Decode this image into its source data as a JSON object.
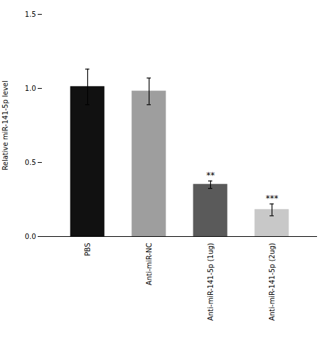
{
  "chart_data": {
    "type": "bar",
    "categories": [
      "PBS",
      "Anti-miR-NC",
      "Anti-miR-141-5p (1ug)",
      "Anti-miR-141-5p (2ug)"
    ],
    "values": [
      1.01,
      0.98,
      0.35,
      0.18
    ],
    "errors": [
      0.12,
      0.09,
      0.025,
      0.04
    ],
    "colors": [
      "#111111",
      "#9e9e9e",
      "#5a5a5a",
      "#c8c8c8"
    ],
    "annotations": [
      null,
      null,
      "**",
      "***"
    ],
    "ylabel": "Relative miR-141-5p level",
    "ylim": [
      0,
      1.5
    ],
    "yticks": [
      {
        "value": 0,
        "label": "0.0"
      },
      0.5,
      {
        "value": 1,
        "label": "1.0"
      },
      1.5
    ],
    "grid": false
  }
}
